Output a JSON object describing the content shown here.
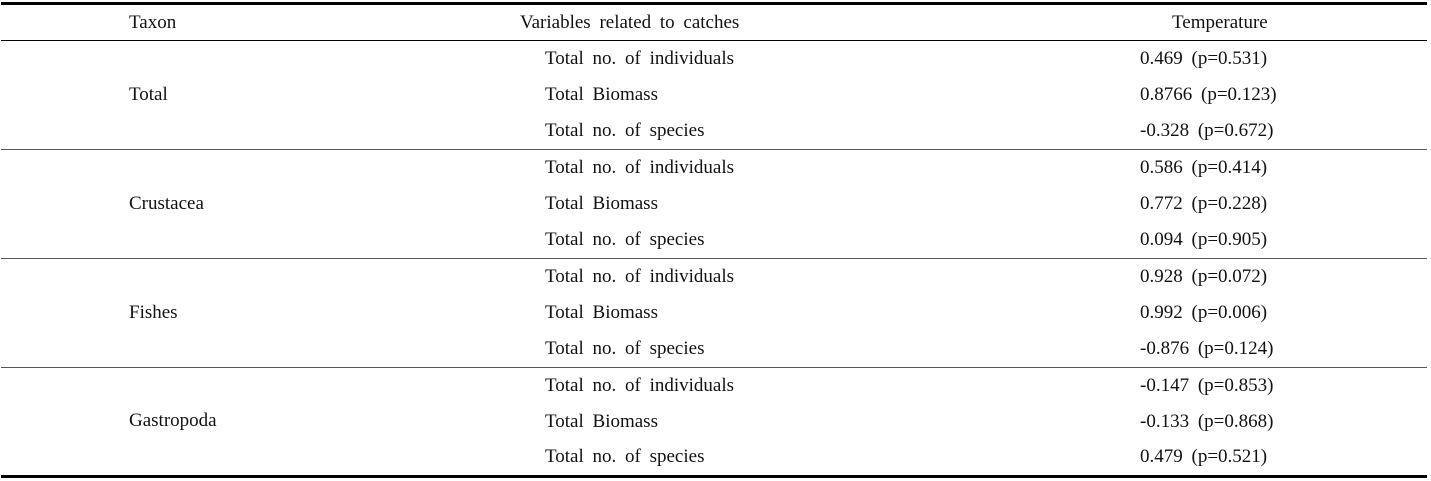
{
  "table": {
    "headers": {
      "taxon": "Taxon",
      "variables": "Variables related to catches",
      "temperature": "Temperature"
    },
    "groups": [
      {
        "taxon": "Total",
        "rows": [
          {
            "variable": "Total no. of individuals",
            "temperature": "0.469 (p=0.531)"
          },
          {
            "variable": "Total Biomass",
            "temperature": "0.8766 (p=0.123)"
          },
          {
            "variable": "Total no. of species",
            "temperature": "-0.328 (p=0.672)"
          }
        ]
      },
      {
        "taxon": "Crustacea",
        "rows": [
          {
            "variable": "Total no. of individuals",
            "temperature": "0.586 (p=0.414)"
          },
          {
            "variable": "Total Biomass",
            "temperature": "0.772 (p=0.228)"
          },
          {
            "variable": "Total no. of species",
            "temperature": "0.094 (p=0.905)"
          }
        ]
      },
      {
        "taxon": "Fishes",
        "rows": [
          {
            "variable": "Total no. of individuals",
            "temperature": "0.928 (p=0.072)"
          },
          {
            "variable": "Total Biomass",
            "temperature": "0.992 (p=0.006)"
          },
          {
            "variable": "Total no. of species",
            "temperature": "-0.876 (p=0.124)"
          }
        ]
      },
      {
        "taxon": "Gastropoda",
        "rows": [
          {
            "variable": "Total no. of individuals",
            "temperature": "-0.147 (p=0.853)"
          },
          {
            "variable": "Total Biomass",
            "temperature": "-0.133 (p=0.868)"
          },
          {
            "variable": "Total no. of species",
            "temperature": "0.479 (p=0.521)"
          }
        ]
      }
    ]
  }
}
